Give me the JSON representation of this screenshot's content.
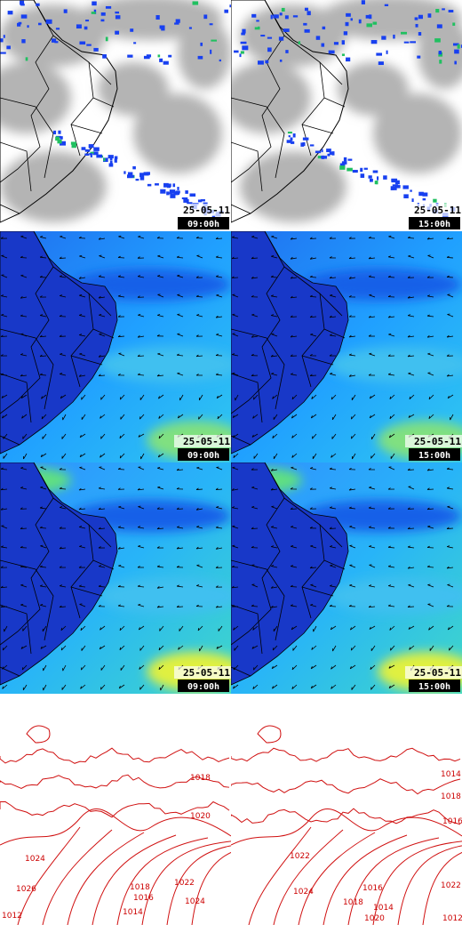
{
  "panels": [
    {
      "date": "25-05-11",
      "time": "09:00h"
    },
    {
      "date": "25-05-11",
      "time": "15:00h"
    },
    {
      "date": "25-05-11",
      "time": "09:00h"
    },
    {
      "date": "25-05-11",
      "time": "15:00h"
    },
    {
      "date": "25-05-11",
      "time": "09:00h"
    },
    {
      "date": "25-05-11",
      "time": "15:00h"
    }
  ],
  "isobars": {
    "left": [
      "1018",
      "1020",
      "1024",
      "1026",
      "1022",
      "1024",
      "1018",
      "1016",
      "1014",
      "1012"
    ],
    "right": [
      "1014",
      "1016",
      "1018",
      "1022",
      "1024",
      "1020",
      "1018",
      "1016",
      "1014",
      "1022",
      "1012"
    ]
  }
}
